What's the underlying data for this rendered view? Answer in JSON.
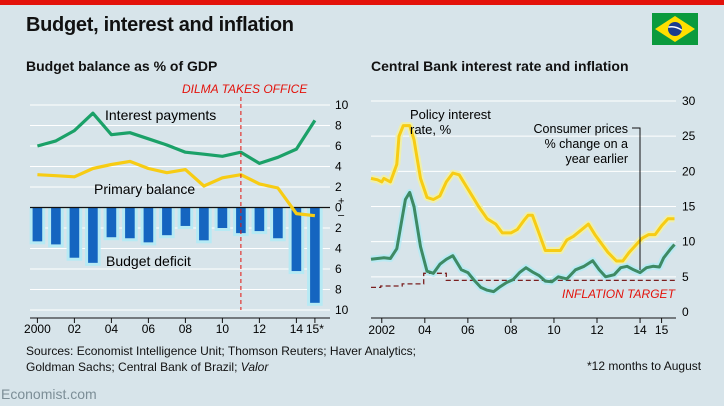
{
  "header": {
    "title": "Budget, interest and inflation",
    "flag_colors": {
      "green": "#0b9a3d",
      "yellow": "#ffdf00",
      "blue": "#1a3d8f"
    }
  },
  "colors": {
    "interest": "#1ba168",
    "primary": "#f7cc14",
    "deficit": "#1565c0",
    "deficit_glow": "#b6eaf4",
    "policy": "#f7cc14",
    "cpi": "#3e8a64",
    "target": "#7a1f1f",
    "dilma": "#e3120b",
    "target_label": "#e3120b"
  },
  "chart_data": [
    {
      "type": "bar+line",
      "title": "Budget balance as % of GDP",
      "annotation": "DILMA TAKES OFFICE",
      "annotation_x": 2011.0,
      "x_ticks": [
        "2000",
        "02",
        "04",
        "06",
        "08",
        "10",
        "12",
        "14",
        "15*"
      ],
      "x_tick_values": [
        2000.0,
        2002.0,
        2004.0,
        2006.0,
        2008.0,
        2010.0,
        2012.0,
        2014.0,
        2015.0
      ],
      "xlim": [
        1999.6,
        2015.6
      ],
      "y_ticks_upper": [
        "10",
        "8",
        "6",
        "4",
        "2",
        "0"
      ],
      "y_ticks_lower": [
        "2",
        "4",
        "6",
        "8",
        "10"
      ],
      "plus_sign": "+",
      "minus_sign": "–",
      "ylim": [
        -10,
        10
      ],
      "series": [
        {
          "name": "Interest payments",
          "x": [
            2000.0,
            2001.0,
            2002.0,
            2003.0,
            2004.0,
            2005.0,
            2006.0,
            2007.0,
            2008.0,
            2009.0,
            2010.0,
            2011.0,
            2012.0,
            2013.0,
            2014.0,
            2015.0
          ],
          "values": [
            6.0,
            6.5,
            7.5,
            9.2,
            7.1,
            7.3,
            6.7,
            6.1,
            5.4,
            5.2,
            5.0,
            5.4,
            4.3,
            4.9,
            5.7,
            8.5
          ]
        },
        {
          "name": "Primary balance",
          "x": [
            2000.0,
            2001.0,
            2002.0,
            2003.0,
            2004.0,
            2005.0,
            2006.0,
            2007.0,
            2008.0,
            2009.0,
            2010.0,
            2011.0,
            2012.0,
            2013.0,
            2014.0,
            2015.0
          ],
          "values": [
            3.2,
            3.1,
            3.0,
            3.8,
            4.2,
            4.5,
            3.8,
            3.4,
            3.7,
            2.1,
            2.9,
            3.2,
            2.3,
            1.9,
            -0.6,
            -0.8
          ]
        },
        {
          "name": "Budget deficit",
          "categories": [
            2000,
            2001,
            2002,
            2003,
            2004,
            2005,
            2006,
            2007,
            2008,
            2009,
            2010,
            2011,
            2012,
            2013,
            2014,
            2015
          ],
          "values": [
            -3.3,
            -3.6,
            -4.9,
            -5.4,
            -2.9,
            -3.0,
            -3.4,
            -2.7,
            -1.8,
            -3.2,
            -2.0,
            -2.5,
            -2.3,
            -3.0,
            -6.2,
            -9.3
          ]
        }
      ]
    },
    {
      "type": "line",
      "title": "Central Bank interest rate and inflation",
      "x_ticks": [
        "2002",
        "04",
        "06",
        "08",
        "10",
        "12",
        "14",
        "15"
      ],
      "x_tick_values": [
        2002.0,
        2004.0,
        2006.0,
        2008.0,
        2010.0,
        2012.0,
        2014.0,
        2015.0
      ],
      "xlim": [
        2001.5,
        2015.67
      ],
      "y_ticks": [
        "30",
        "25",
        "20",
        "15",
        "10",
        "5",
        "0"
      ],
      "ylim": [
        0,
        30
      ],
      "series": [
        {
          "name": "Policy interest rate, %",
          "x": [
            2001.5,
            2001.8,
            2002.0,
            2002.1,
            2002.4,
            2002.7,
            2002.8,
            2003.0,
            2003.3,
            2003.5,
            2003.8,
            2004.1,
            2004.4,
            2004.7,
            2005.0,
            2005.3,
            2005.6,
            2005.9,
            2006.2,
            2006.5,
            2006.9,
            2007.3,
            2007.6,
            2008.0,
            2008.3,
            2008.6,
            2008.8,
            2009.0,
            2009.3,
            2009.6,
            2009.9,
            2010.3,
            2010.6,
            2010.9,
            2011.3,
            2011.6,
            2011.9,
            2012.2,
            2012.5,
            2012.9,
            2013.2,
            2013.5,
            2013.8,
            2014.1,
            2014.4,
            2014.7,
            2015.0,
            2015.3,
            2015.6
          ],
          "values": [
            19.0,
            18.8,
            18.5,
            19.0,
            18.5,
            21.0,
            25.0,
            26.5,
            26.5,
            24.5,
            19.0,
            16.3,
            16.0,
            16.5,
            18.5,
            19.75,
            19.5,
            18.0,
            16.5,
            15.0,
            13.25,
            12.5,
            11.25,
            11.25,
            11.75,
            13.0,
            13.75,
            13.75,
            11.25,
            8.75,
            8.75,
            8.75,
            10.25,
            10.75,
            11.75,
            12.5,
            11.0,
            9.75,
            8.5,
            7.25,
            7.25,
            8.5,
            9.5,
            10.5,
            11.0,
            11.0,
            12.25,
            13.25,
            13.25
          ]
        },
        {
          "name": "Consumer prices % change on a year earlier",
          "x": [
            2001.5,
            2001.8,
            2002.1,
            2002.4,
            2002.7,
            2002.9,
            2003.1,
            2003.3,
            2003.5,
            2003.8,
            2004.1,
            2004.4,
            2004.7,
            2005.0,
            2005.3,
            2005.7,
            2006.0,
            2006.3,
            2006.6,
            2006.9,
            2007.2,
            2007.5,
            2007.8,
            2008.1,
            2008.4,
            2008.7,
            2009.0,
            2009.3,
            2009.6,
            2009.9,
            2010.2,
            2010.6,
            2011.0,
            2011.4,
            2011.8,
            2012.1,
            2012.4,
            2012.8,
            2013.1,
            2013.4,
            2013.7,
            2014.0,
            2014.3,
            2014.6,
            2014.9,
            2015.1,
            2015.4,
            2015.6
          ],
          "values": [
            7.5,
            7.6,
            7.7,
            7.6,
            9.0,
            12.5,
            16.0,
            17.0,
            15.0,
            9.3,
            5.8,
            5.5,
            6.8,
            7.5,
            8.0,
            6.0,
            5.6,
            4.5,
            3.5,
            3.1,
            2.9,
            3.6,
            4.2,
            4.6,
            5.6,
            6.3,
            5.7,
            5.2,
            4.4,
            4.3,
            5.0,
            4.7,
            6.0,
            6.5,
            7.3,
            6.0,
            5.0,
            5.3,
            6.3,
            6.5,
            6.0,
            5.6,
            6.3,
            6.5,
            6.4,
            7.7,
            8.9,
            9.6
          ]
        },
        {
          "name": "Inflation target",
          "x": [
            2001.5,
            2001.95,
            2001.95,
            2002.95,
            2002.95,
            2003.95,
            2003.95,
            2005.0,
            2005.0,
            2015.67
          ],
          "values": [
            3.5,
            3.5,
            3.7,
            3.7,
            4.0,
            4.0,
            5.5,
            5.5,
            4.5,
            4.5
          ]
        }
      ]
    }
  ],
  "labels": {
    "left_subtitle": "Budget balance as % of GDP",
    "right_subtitle": "Central Bank interest rate and inflation",
    "interest_payments": "Interest payments",
    "primary_balance": "Primary balance",
    "budget_deficit": "Budget deficit",
    "policy_line1": "Policy interest",
    "policy_line2": "rate, %",
    "cpi_line1": "Consumer prices",
    "cpi_line2": "% change on a",
    "cpi_line3": "year earlier",
    "inflation_target": "INFLATION TARGET"
  },
  "footer": {
    "sources_line1": "Sources: Economist Intelligence Unit; Thomson Reuters; Haver Analytics;",
    "sources_line2_plain": "Goldman Sachs; Central Bank of Brazil; ",
    "sources_line2_italic": "Valor",
    "footnote": "*12 months to August",
    "brand": "Economist.com"
  }
}
